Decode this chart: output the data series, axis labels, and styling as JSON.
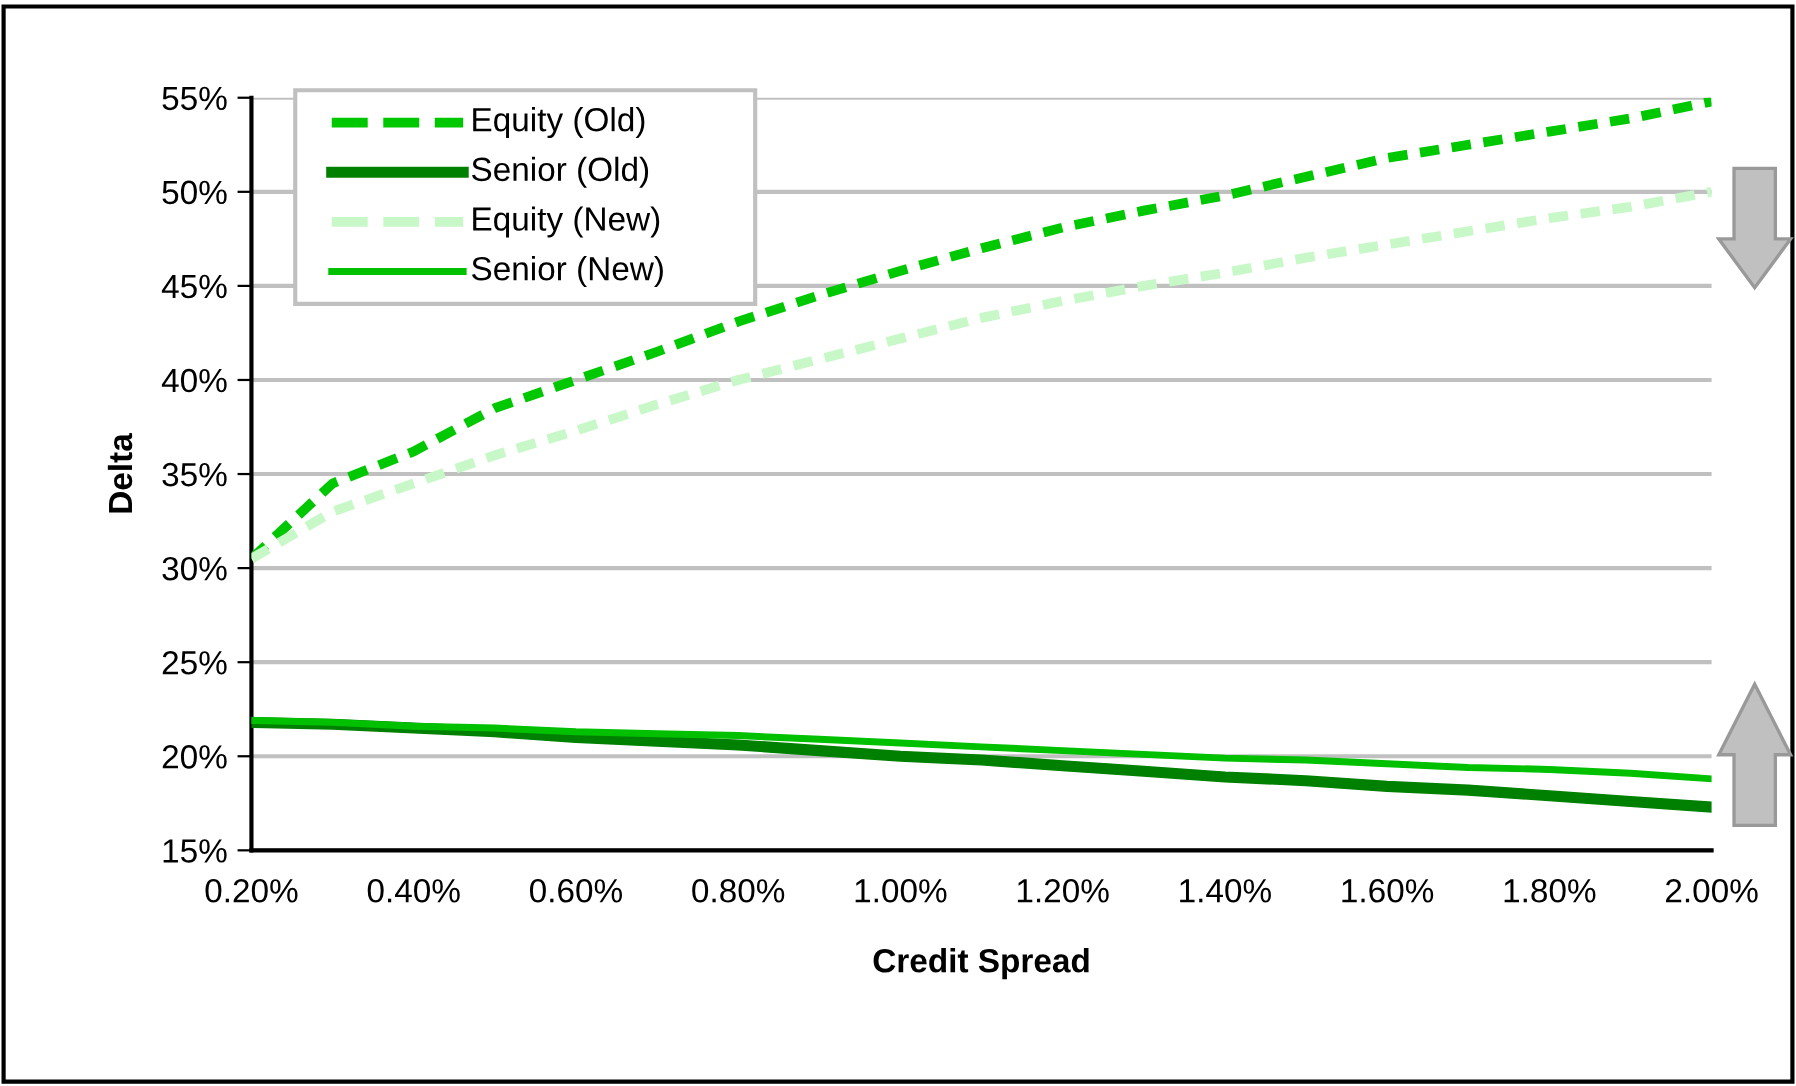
{
  "chart_data": {
    "type": "line",
    "xlabel": "Credit Spread",
    "ylabel": "Delta",
    "x": [
      0.2,
      0.3,
      0.4,
      0.5,
      0.6,
      0.7,
      0.8,
      0.9,
      1.0,
      1.1,
      1.2,
      1.3,
      1.4,
      1.5,
      1.6,
      1.7,
      1.8,
      1.9,
      2.0
    ],
    "series": [
      {
        "name": "Equity (Old)",
        "color": "#00c800",
        "line_style": "dashed",
        "values": [
          30.5,
          34.5,
          36.2,
          38.5,
          40.0,
          41.5,
          43.1,
          44.5,
          45.8,
          47.0,
          48.1,
          49.0,
          49.8,
          50.8,
          51.8,
          52.5,
          53.2,
          53.9,
          54.8
        ]
      },
      {
        "name": "Senior (Old)",
        "color": "#008000",
        "line_style": "solid",
        "values": [
          21.8,
          21.7,
          21.5,
          21.3,
          21.0,
          20.8,
          20.6,
          20.3,
          20.0,
          19.8,
          19.5,
          19.2,
          18.9,
          18.7,
          18.4,
          18.2,
          17.9,
          17.6,
          17.3
        ]
      },
      {
        "name": "Equity (New)",
        "color": "#c8f8c8",
        "line_style": "dashed",
        "values": [
          30.5,
          33.0,
          34.5,
          36.0,
          37.3,
          38.7,
          40.0,
          41.1,
          42.2,
          43.3,
          44.2,
          45.0,
          45.7,
          46.5,
          47.2,
          47.9,
          48.6,
          49.2,
          50.0
        ]
      },
      {
        "name": "Senior (New)",
        "color": "#00c000",
        "line_style": "solid",
        "values": [
          21.9,
          21.8,
          21.6,
          21.5,
          21.3,
          21.2,
          21.1,
          20.9,
          20.7,
          20.5,
          20.3,
          20.1,
          19.9,
          19.8,
          19.6,
          19.4,
          19.3,
          19.1,
          18.8
        ]
      }
    ],
    "xlim": [
      0.2,
      2.0
    ],
    "xticks": [
      {
        "value": 0.2,
        "label": "0.20%"
      },
      {
        "value": 0.4,
        "label": "0.40%"
      },
      {
        "value": 0.6,
        "label": "0.60%"
      },
      {
        "value": 0.8,
        "label": "0.80%"
      },
      {
        "value": 1.0,
        "label": "1.00%"
      },
      {
        "value": 1.2,
        "label": "1.20%"
      },
      {
        "value": 1.4,
        "label": "1.40%"
      },
      {
        "value": 1.6,
        "label": "1.60%"
      },
      {
        "value": 1.8,
        "label": "1.80%"
      },
      {
        "value": 2.0,
        "label": "2.00%"
      }
    ],
    "ylim": [
      15,
      55
    ],
    "yticks": [
      {
        "value": 15,
        "label": "15%"
      },
      {
        "value": 20,
        "label": "20%"
      },
      {
        "value": 25,
        "label": "25%"
      },
      {
        "value": 30,
        "label": "30%"
      },
      {
        "value": 35,
        "label": "35%"
      },
      {
        "value": 40,
        "label": "40%"
      },
      {
        "value": 45,
        "label": "45%"
      },
      {
        "value": 50,
        "label": "50%"
      },
      {
        "value": 55,
        "label": "55%"
      }
    ],
    "grid": "y",
    "legend": "top left",
    "marker": "none"
  }
}
